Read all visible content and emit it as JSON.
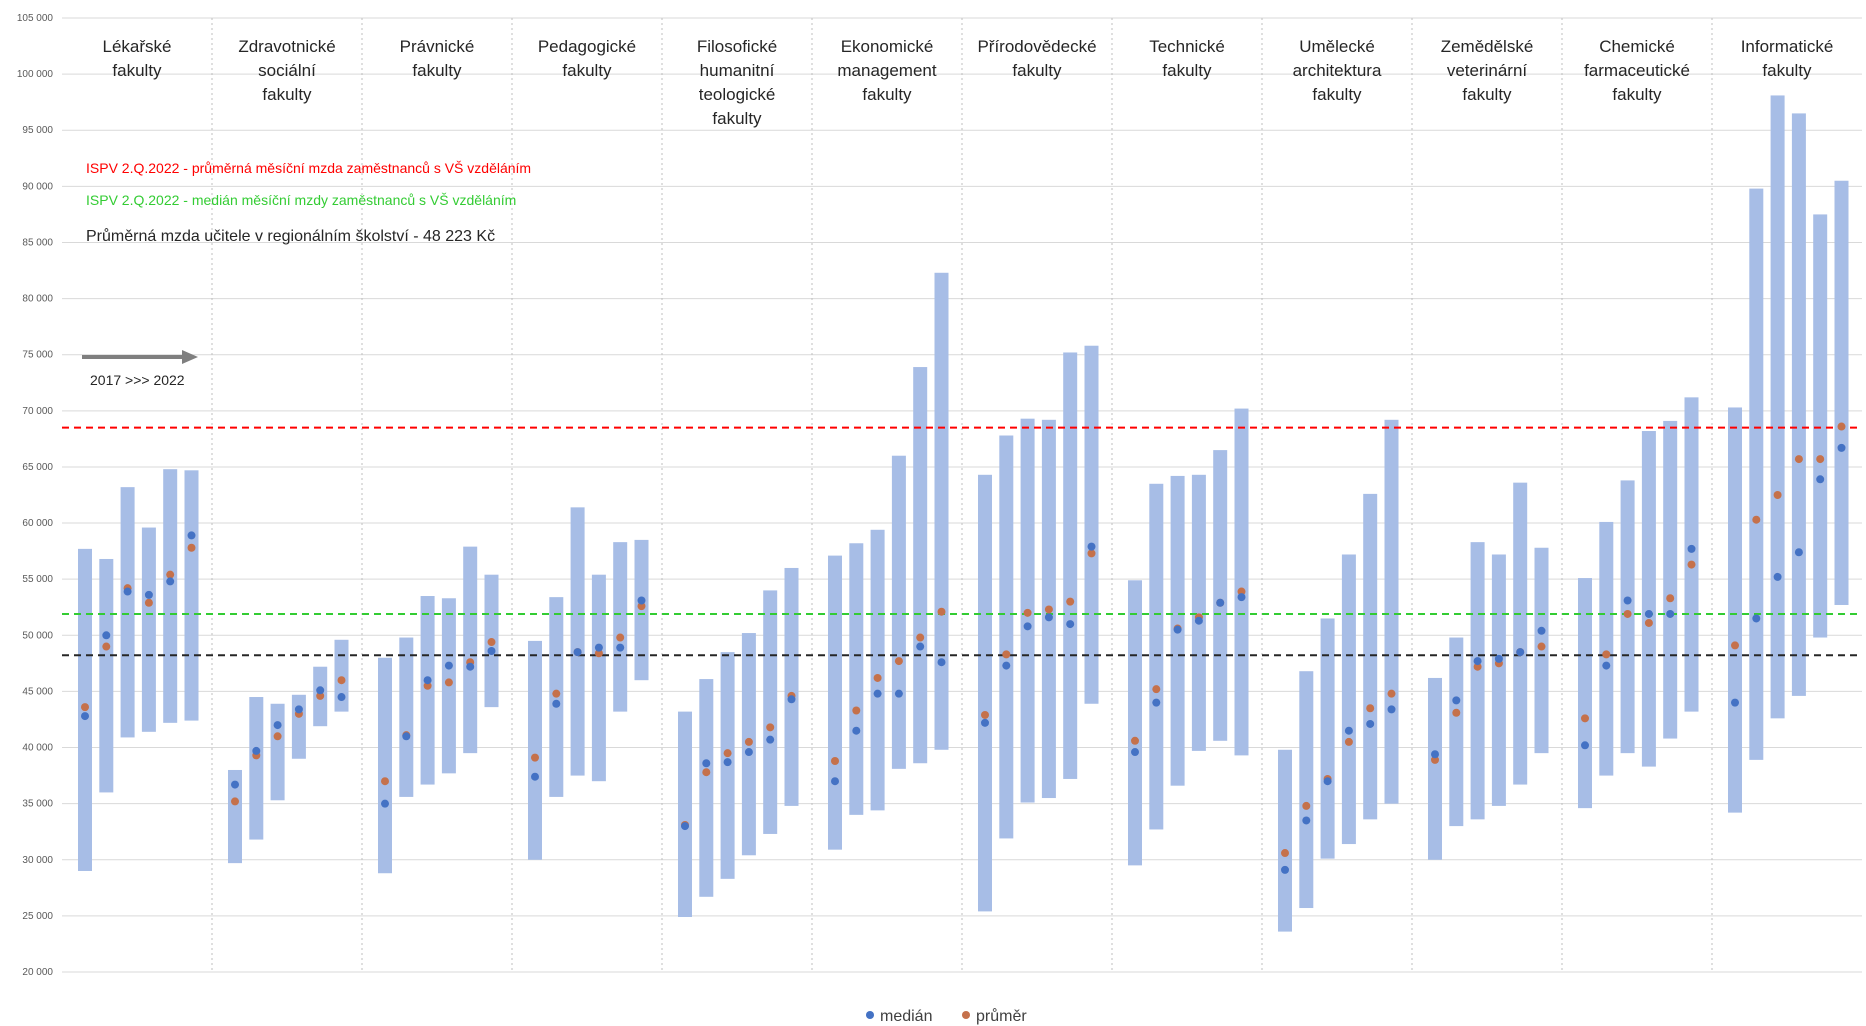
{
  "chart_data": {
    "type": "bar",
    "subtype": "floating range bars with median and mean markers",
    "title": "",
    "xlabel": "",
    "ylabel": "",
    "ylim": [
      20000,
      105000
    ],
    "yticks": [
      20000,
      25000,
      30000,
      35000,
      40000,
      45000,
      50000,
      55000,
      60000,
      65000,
      70000,
      75000,
      80000,
      85000,
      90000,
      95000,
      100000,
      105000
    ],
    "ytick_labels": [
      "20 000",
      "25 000",
      "30 000",
      "35 000",
      "40 000",
      "45 000",
      "50 000",
      "55 000",
      "60 000",
      "65 000",
      "70 000",
      "75 000",
      "80 000",
      "85 000",
      "90 000",
      "95 000",
      "100 000",
      "105 000"
    ],
    "grid": true,
    "legend_position": "bottom",
    "series_names": {
      "median": "medián",
      "mean": "průměr"
    },
    "colors": {
      "bar": "#a7bde6",
      "median": "#4472c4",
      "mean": "#c5714b",
      "red_line": "#ff0000",
      "green_line": "#33cc33",
      "black_line": "#262626",
      "arrow": "#7f7f7f"
    },
    "reference_lines": [
      {
        "value": 68500,
        "color": "#ff0000",
        "label": "ISPV 2.Q.2022 - průměrná měsíční mzda zaměstnanců s VŠ vzděláním"
      },
      {
        "value": 51900,
        "color": "#33cc33",
        "label": "ISPV 2.Q.2022 - medián měsíční mzdy zaměstnanců s VŠ vzděláním"
      },
      {
        "value": 48223,
        "color": "#262626",
        "label": "Průměrná mzda učitele v regionálním školství  - 48 223 Kč"
      }
    ],
    "arrow_label": "2017 >>> 2022",
    "groups": [
      {
        "label": [
          "Lékařské",
          "fakulty"
        ],
        "bars": [
          {
            "low": 29000,
            "high": 57700,
            "median": 42800,
            "mean": 43600
          },
          {
            "low": 36000,
            "high": 56800,
            "median": 50000,
            "mean": 49000
          },
          {
            "low": 40900,
            "high": 63200,
            "median": 53900,
            "mean": 54200
          },
          {
            "low": 41400,
            "high": 59600,
            "median": 53600,
            "mean": 52900
          },
          {
            "low": 42200,
            "high": 64800,
            "median": 54800,
            "mean": 55400
          },
          {
            "low": 42400,
            "high": 64700,
            "median": 58900,
            "mean": 57800
          }
        ]
      },
      {
        "label": [
          "Zdravotnické",
          "sociální",
          "fakulty"
        ],
        "bars": [
          {
            "low": 29700,
            "high": 38000,
            "median": 36700,
            "mean": 35200
          },
          {
            "low": 31800,
            "high": 44500,
            "median": 39700,
            "mean": 39300
          },
          {
            "low": 35300,
            "high": 43900,
            "median": 42000,
            "mean": 41000
          },
          {
            "low": 39000,
            "high": 44700,
            "median": 43400,
            "mean": 43000
          },
          {
            "low": 41900,
            "high": 47200,
            "median": 45100,
            "mean": 44600
          },
          {
            "low": 43200,
            "high": 49600,
            "median": 44500,
            "mean": 46000
          }
        ]
      },
      {
        "label": [
          "Právnické",
          "fakulty"
        ],
        "bars": [
          {
            "low": 28800,
            "high": 48000,
            "median": 35000,
            "mean": 37000
          },
          {
            "low": 35600,
            "high": 49800,
            "median": 41000,
            "mean": 41100
          },
          {
            "low": 36700,
            "high": 53500,
            "median": 46000,
            "mean": 45500
          },
          {
            "low": 37700,
            "high": 53300,
            "median": 47300,
            "mean": 45800
          },
          {
            "low": 39500,
            "high": 57900,
            "median": 47200,
            "mean": 47600
          },
          {
            "low": 43600,
            "high": 55400,
            "median": 48600,
            "mean": 49400
          }
        ]
      },
      {
        "label": [
          "Pedagogické",
          "fakulty"
        ],
        "bars": [
          {
            "low": 30000,
            "high": 49500,
            "median": 37400,
            "mean": 39100
          },
          {
            "low": 35600,
            "high": 53400,
            "median": 43900,
            "mean": 44800
          },
          {
            "low": 37500,
            "high": 61400,
            "median": 48500,
            "mean": 48500
          },
          {
            "low": 37000,
            "high": 55400,
            "median": 48900,
            "mean": 48400
          },
          {
            "low": 43200,
            "high": 58300,
            "median": 48900,
            "mean": 49800
          },
          {
            "low": 46000,
            "high": 58500,
            "median": 53100,
            "mean": 52600
          }
        ]
      },
      {
        "label": [
          "Filosofické",
          "humanitní",
          "teologické",
          "fakulty"
        ],
        "bars": [
          {
            "low": 24900,
            "high": 43200,
            "median": 33000,
            "mean": 33100
          },
          {
            "low": 26700,
            "high": 46100,
            "median": 38600,
            "mean": 37800
          },
          {
            "low": 28300,
            "high": 48500,
            "median": 38700,
            "mean": 39500
          },
          {
            "low": 30400,
            "high": 50200,
            "median": 39600,
            "mean": 40500
          },
          {
            "low": 32300,
            "high": 54000,
            "median": 40700,
            "mean": 41800
          },
          {
            "low": 34800,
            "high": 56000,
            "median": 44300,
            "mean": 44600
          }
        ]
      },
      {
        "label": [
          "Ekonomické",
          "management",
          "fakulty"
        ],
        "bars": [
          {
            "low": 30900,
            "high": 57100,
            "median": 37000,
            "mean": 38800
          },
          {
            "low": 34000,
            "high": 58200,
            "median": 41500,
            "mean": 43300
          },
          {
            "low": 34400,
            "high": 59400,
            "median": 44800,
            "mean": 46200
          },
          {
            "low": 38100,
            "high": 66000,
            "median": 44800,
            "mean": 47700
          },
          {
            "low": 38600,
            "high": 73900,
            "median": 49000,
            "mean": 49800
          },
          {
            "low": 39800,
            "high": 82300,
            "median": 47600,
            "mean": 52100
          }
        ]
      },
      {
        "label": [
          "Přírodovědecké",
          "fakulty"
        ],
        "bars": [
          {
            "low": 25400,
            "high": 64300,
            "median": 42200,
            "mean": 42900
          },
          {
            "low": 31900,
            "high": 67800,
            "median": 47300,
            "mean": 48300
          },
          {
            "low": 35100,
            "high": 69300,
            "median": 50800,
            "mean": 52000
          },
          {
            "low": 35500,
            "high": 69200,
            "median": 51600,
            "mean": 52300
          },
          {
            "low": 37200,
            "high": 75200,
            "median": 51000,
            "mean": 53000
          },
          {
            "low": 43900,
            "high": 75800,
            "median": 57900,
            "mean": 57300
          }
        ]
      },
      {
        "label": [
          "Technické",
          "fakulty"
        ],
        "bars": [
          {
            "low": 29500,
            "high": 54900,
            "median": 39600,
            "mean": 40600
          },
          {
            "low": 32700,
            "high": 63500,
            "median": 44000,
            "mean": 45200
          },
          {
            "low": 36600,
            "high": 64200,
            "median": 50500,
            "mean": 50600
          },
          {
            "low": 39700,
            "high": 64300,
            "median": 51300,
            "mean": 51600
          },
          {
            "low": 40600,
            "high": 66500,
            "median": 52900,
            "mean": 52900
          },
          {
            "low": 39300,
            "high": 70200,
            "median": 53400,
            "mean": 53900
          }
        ]
      },
      {
        "label": [
          "Umělecké",
          "architektura",
          "fakulty"
        ],
        "bars": [
          {
            "low": 23600,
            "high": 39800,
            "median": 29100,
            "mean": 30600
          },
          {
            "low": 25700,
            "high": 46800,
            "median": 33500,
            "mean": 34800
          },
          {
            "low": 30100,
            "high": 51500,
            "median": 37000,
            "mean": 37200
          },
          {
            "low": 31400,
            "high": 57200,
            "median": 41500,
            "mean": 40500
          },
          {
            "low": 33600,
            "high": 62600,
            "median": 42100,
            "mean": 43500
          },
          {
            "low": 35000,
            "high": 69200,
            "median": 43400,
            "mean": 44800
          }
        ]
      },
      {
        "label": [
          "Zemědělské",
          "veterinární",
          "fakulty"
        ],
        "bars": [
          {
            "low": 30000,
            "high": 46200,
            "median": 39400,
            "mean": 38900
          },
          {
            "low": 33000,
            "high": 49800,
            "median": 44200,
            "mean": 43100
          },
          {
            "low": 33600,
            "high": 58300,
            "median": 47700,
            "mean": 47200
          },
          {
            "low": 34800,
            "high": 57200,
            "median": 47900,
            "mean": 47500
          },
          {
            "low": 36700,
            "high": 63600,
            "median": 48500,
            "mean": 48500
          },
          {
            "low": 39500,
            "high": 57800,
            "median": 50400,
            "mean": 49000
          }
        ]
      },
      {
        "label": [
          "Chemické",
          "farmaceutické",
          "fakulty"
        ],
        "bars": [
          {
            "low": 34600,
            "high": 55100,
            "median": 40200,
            "mean": 42600
          },
          {
            "low": 37500,
            "high": 60100,
            "median": 47300,
            "mean": 48300
          },
          {
            "low": 39500,
            "high": 63800,
            "median": 53100,
            "mean": 51900
          },
          {
            "low": 38300,
            "high": 68200,
            "median": 51900,
            "mean": 51100
          },
          {
            "low": 40800,
            "high": 69100,
            "median": 51900,
            "mean": 53300
          },
          {
            "low": 43200,
            "high": 71200,
            "median": 57700,
            "mean": 56300
          }
        ]
      },
      {
        "label": [
          "Informatické",
          "fakulty"
        ],
        "bars": [
          {
            "low": 34200,
            "high": 70300,
            "median": 44000,
            "mean": 49100
          },
          {
            "low": 38900,
            "high": 89800,
            "median": 51500,
            "mean": 60300
          },
          {
            "low": 42600,
            "high": 98100,
            "median": 55200,
            "mean": 62500
          },
          {
            "low": 44600,
            "high": 96500,
            "median": 57400,
            "mean": 65700
          },
          {
            "low": 49800,
            "high": 87500,
            "median": 63900,
            "mean": 65700
          },
          {
            "low": 52700,
            "high": 90500,
            "median": 66700,
            "mean": 68600
          }
        ]
      }
    ]
  }
}
